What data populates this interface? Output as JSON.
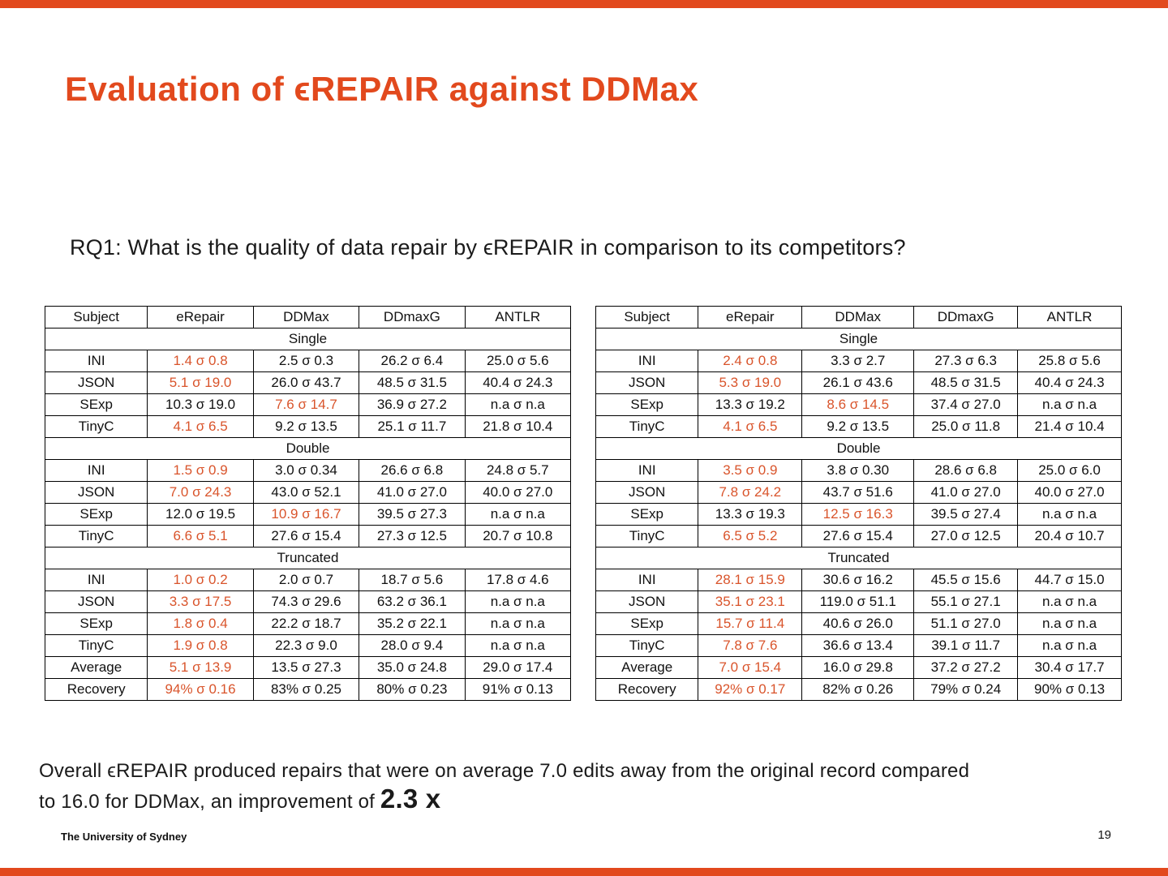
{
  "colors": {
    "accent": "#E2491D",
    "highlight": "#D9542B"
  },
  "slide": {
    "title": "Evaluation of ϵREPAIR against DDMax",
    "question": "RQ1: What is the quality of data repair by ϵREPAIR in comparison to its competitors?",
    "conclusion_line1": "Overall ϵREPAIR produced repairs that were on average 7.0 edits away from the original record compared",
    "conclusion_line2_pre": "to 16.0 for DDMax, an improvement of ",
    "conclusion_emphasis": "2.3 x",
    "footer_left": "The University of Sydney",
    "page_number": "19"
  },
  "tables": [
    {
      "name": "left-results",
      "headers": [
        "Subject",
        "eRepair",
        "DDMax",
        "DDmaxG",
        "ANTLR"
      ],
      "sections": [
        {
          "label": "Single",
          "rows": [
            {
              "subject": "INI",
              "values": [
                "1.4 σ 0.8",
                "2.5 σ 0.3",
                "26.2 σ 6.4",
                "25.0 σ 5.6"
              ],
              "highlight": 0
            },
            {
              "subject": "JSON",
              "values": [
                "5.1 σ 19.0",
                "26.0 σ 43.7",
                "48.5 σ 31.5",
                "40.4 σ 24.3"
              ],
              "highlight": 0
            },
            {
              "subject": "SExp",
              "values": [
                "10.3 σ 19.0",
                "7.6 σ 14.7",
                "36.9 σ 27.2",
                "n.a σ n.a"
              ],
              "highlight": 1
            },
            {
              "subject": "TinyC",
              "values": [
                "4.1 σ 6.5",
                "9.2 σ 13.5",
                "25.1 σ 11.7",
                "21.8 σ 10.4"
              ],
              "highlight": 0
            }
          ]
        },
        {
          "label": "Double",
          "rows": [
            {
              "subject": "INI",
              "values": [
                "1.5 σ 0.9",
                "3.0 σ 0.34",
                "26.6 σ 6.8",
                "24.8 σ 5.7"
              ],
              "highlight": 0
            },
            {
              "subject": "JSON",
              "values": [
                "7.0 σ 24.3",
                "43.0 σ 52.1",
                "41.0 σ 27.0",
                "40.0 σ 27.0"
              ],
              "highlight": 0
            },
            {
              "subject": "SExp",
              "values": [
                "12.0 σ 19.5",
                "10.9 σ 16.7",
                "39.5 σ 27.3",
                "n.a σ n.a"
              ],
              "highlight": 1
            },
            {
              "subject": "TinyC",
              "values": [
                "6.6 σ 5.1",
                "27.6 σ 15.4",
                "27.3 σ 12.5",
                "20.7 σ 10.8"
              ],
              "highlight": 0
            }
          ]
        },
        {
          "label": "Truncated",
          "rows": [
            {
              "subject": "INI",
              "values": [
                "1.0 σ 0.2",
                "2.0 σ 0.7",
                "18.7 σ 5.6",
                "17.8 σ 4.6"
              ],
              "highlight": 0
            },
            {
              "subject": "JSON",
              "values": [
                "3.3 σ 17.5",
                "74.3 σ 29.6",
                "63.2 σ 36.1",
                "n.a σ n.a"
              ],
              "highlight": 0
            },
            {
              "subject": "SExp",
              "values": [
                "1.8 σ 0.4",
                "22.2 σ 18.7",
                "35.2 σ 22.1",
                "n.a σ n.a"
              ],
              "highlight": 0
            },
            {
              "subject": "TinyC",
              "values": [
                "1.9 σ 0.8",
                "22.3 σ 9.0",
                "28.0 σ 9.4",
                "n.a σ n.a"
              ],
              "highlight": 0
            }
          ]
        }
      ],
      "summary": [
        {
          "subject": "Average",
          "values": [
            "5.1 σ 13.9",
            "13.5 σ 27.3",
            "35.0 σ 24.8",
            "29.0 σ 17.4"
          ],
          "highlight": 0
        },
        {
          "subject": "Recovery",
          "values": [
            "94% σ 0.16",
            "83% σ 0.25",
            "80% σ 0.23",
            "91% σ 0.13"
          ],
          "highlight": 0
        }
      ]
    },
    {
      "name": "right-results",
      "headers": [
        "Subject",
        "eRepair",
        "DDMax",
        "DDmaxG",
        "ANTLR"
      ],
      "sections": [
        {
          "label": "Single",
          "rows": [
            {
              "subject": "INI",
              "values": [
                "2.4 σ 0.8",
                "3.3 σ 2.7",
                "27.3 σ 6.3",
                "25.8 σ 5.6"
              ],
              "highlight": 0
            },
            {
              "subject": "JSON",
              "values": [
                "5.3 σ 19.0",
                "26.1 σ 43.6",
                "48.5 σ 31.5",
                "40.4 σ 24.3"
              ],
              "highlight": 0
            },
            {
              "subject": "SExp",
              "values": [
                "13.3 σ 19.2",
                "8.6 σ 14.5",
                "37.4 σ 27.0",
                "n.a σ n.a"
              ],
              "highlight": 1
            },
            {
              "subject": "TinyC",
              "values": [
                "4.1 σ 6.5",
                "9.2 σ 13.5",
                "25.0 σ 11.8",
                "21.4 σ 10.4"
              ],
              "highlight": 0
            }
          ]
        },
        {
          "label": "Double",
          "rows": [
            {
              "subject": "INI",
              "values": [
                "3.5 σ 0.9",
                "3.8 σ 0.30",
                "28.6 σ 6.8",
                "25.0 σ 6.0"
              ],
              "highlight": 0
            },
            {
              "subject": "JSON",
              "values": [
                "7.8 σ 24.2",
                "43.7 σ 51.6",
                "41.0 σ 27.0",
                "40.0 σ 27.0"
              ],
              "highlight": 0
            },
            {
              "subject": "SExp",
              "values": [
                "13.3 σ 19.3",
                "12.5 σ 16.3",
                "39.5 σ 27.4",
                "n.a σ n.a"
              ],
              "highlight": 1
            },
            {
              "subject": "TinyC",
              "values": [
                "6.5 σ 5.2",
                "27.6 σ 15.4",
                "27.0 σ 12.5",
                "20.4 σ 10.7"
              ],
              "highlight": 0
            }
          ]
        },
        {
          "label": "Truncated",
          "rows": [
            {
              "subject": "INI",
              "values": [
                "28.1 σ 15.9",
                "30.6 σ 16.2",
                "45.5 σ 15.6",
                "44.7 σ 15.0"
              ],
              "highlight": 0
            },
            {
              "subject": "JSON",
              "values": [
                "35.1 σ 23.1",
                "119.0 σ 51.1",
                "55.1 σ 27.1",
                "n.a σ n.a"
              ],
              "highlight": 0
            },
            {
              "subject": "SExp",
              "values": [
                "15.7 σ 11.4",
                "40.6 σ 26.0",
                "51.1 σ 27.0",
                "n.a σ n.a"
              ],
              "highlight": 0
            },
            {
              "subject": "TinyC",
              "values": [
                "7.8 σ 7.6",
                "36.6 σ 13.4",
                "39.1 σ 11.7",
                "n.a σ n.a"
              ],
              "highlight": 0
            }
          ]
        }
      ],
      "summary": [
        {
          "subject": "Average",
          "values": [
            "7.0 σ 15.4",
            "16.0 σ 29.8",
            "37.2 σ 27.2",
            "30.4 σ 17.7"
          ],
          "highlight": 0
        },
        {
          "subject": "Recovery",
          "values": [
            "92% σ 0.17",
            "82% σ 0.26",
            "79% σ 0.24",
            "90% σ 0.13"
          ],
          "highlight": 0
        }
      ]
    }
  ]
}
